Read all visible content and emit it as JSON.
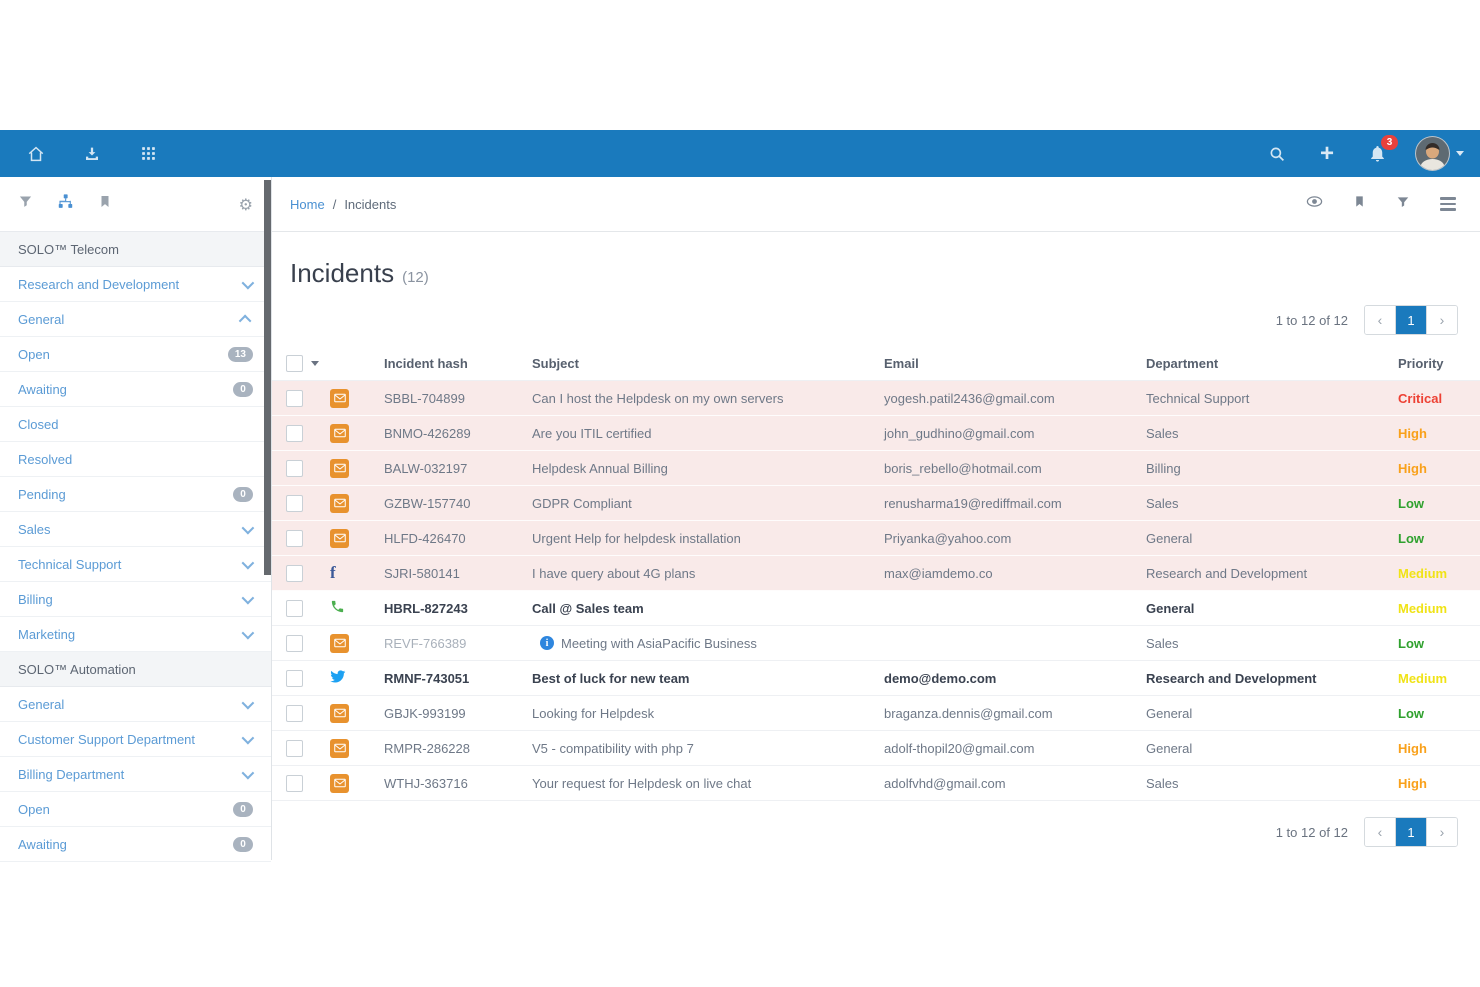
{
  "topbar": {
    "notification_count": "3",
    "icons": [
      "home-icon",
      "download-icon",
      "apps-grid-icon",
      "search-icon",
      "plus-icon",
      "bell-icon",
      "avatar",
      "caret-down-icon"
    ]
  },
  "sidebar": {
    "header_icons": [
      "filter-icon",
      "sitemap-icon",
      "bookmark-icon",
      "gear-icon"
    ],
    "items": [
      {
        "type": "section",
        "label": "SOLO™ Telecom"
      },
      {
        "type": "item",
        "label": "Research and Development",
        "chevron": "down"
      },
      {
        "type": "item",
        "label": "General",
        "chevron": "up"
      },
      {
        "type": "item",
        "label": "Open",
        "badge": "13"
      },
      {
        "type": "item",
        "label": "Awaiting",
        "badge": "0"
      },
      {
        "type": "item",
        "label": "Closed"
      },
      {
        "type": "item",
        "label": "Resolved"
      },
      {
        "type": "item",
        "label": "Pending",
        "badge": "0"
      },
      {
        "type": "item",
        "label": "Sales",
        "chevron": "down"
      },
      {
        "type": "item",
        "label": "Technical Support",
        "chevron": "down"
      },
      {
        "type": "item",
        "label": "Billing",
        "chevron": "down"
      },
      {
        "type": "item",
        "label": "Marketing",
        "chevron": "down"
      },
      {
        "type": "section",
        "label": "SOLO™ Automation"
      },
      {
        "type": "item",
        "label": "General",
        "chevron": "down"
      },
      {
        "type": "item",
        "label": "Customer Support Department",
        "chevron": "down"
      },
      {
        "type": "item",
        "label": "Billing Department",
        "chevron": "down"
      },
      {
        "type": "item",
        "label": "Open",
        "badge": "0"
      },
      {
        "type": "item",
        "label": "Awaiting",
        "badge": "0"
      }
    ]
  },
  "breadcrumb": {
    "home": "Home",
    "separator": "/",
    "current": "Incidents"
  },
  "header_actions": [
    "eye-icon",
    "bookmark-icon",
    "filter-icon",
    "menu-icon"
  ],
  "page": {
    "title": "Incidents",
    "count": "(12)"
  },
  "pagination": {
    "summary": "1 to 12 of 12",
    "prev": "‹",
    "page": "1",
    "next": "›"
  },
  "table": {
    "columns": [
      "Incident hash",
      "Subject",
      "Email",
      "Department",
      "Priority"
    ],
    "rows": [
      {
        "channel": "email-icon",
        "hash": "SBBL-704899",
        "subject": "Can I host the Helpdesk on my own servers",
        "email": "yogesh.patil2436@gmail.com",
        "department": "Technical Support",
        "priority": "Critical",
        "unread": true,
        "bold": false,
        "muted": false,
        "info": false
      },
      {
        "channel": "email-icon",
        "hash": "BNMO-426289",
        "subject": "Are you ITIL certified",
        "email": "john_gudhino@gmail.com",
        "department": "Sales",
        "priority": "High",
        "unread": true,
        "bold": false,
        "muted": false,
        "info": false
      },
      {
        "channel": "email-icon",
        "hash": "BALW-032197",
        "subject": "Helpdesk Annual Billing",
        "email": "boris_rebello@hotmail.com",
        "department": "Billing",
        "priority": "High",
        "unread": true,
        "bold": false,
        "muted": false,
        "info": false
      },
      {
        "channel": "email-icon",
        "hash": "GZBW-157740",
        "subject": "GDPR Compliant",
        "email": "renusharma19@rediffmail.com",
        "department": "Sales",
        "priority": "Low",
        "unread": true,
        "bold": false,
        "muted": false,
        "info": false
      },
      {
        "channel": "email-icon",
        "hash": "HLFD-426470",
        "subject": "Urgent Help for helpdesk installation",
        "email": "Priyanka@yahoo.com",
        "department": "General",
        "priority": "Low",
        "unread": true,
        "bold": false,
        "muted": false,
        "info": false
      },
      {
        "channel": "facebook-icon",
        "hash": "SJRI-580141",
        "subject": "I have query about 4G plans",
        "email": "max@iamdemo.co",
        "department": "Research and Development",
        "priority": "Medium",
        "unread": true,
        "bold": false,
        "muted": false,
        "info": false
      },
      {
        "channel": "phone-icon",
        "hash": "HBRL-827243",
        "subject": "Call @ Sales team",
        "email": "",
        "department": "General",
        "priority": "Medium",
        "unread": false,
        "bold": true,
        "muted": false,
        "info": false
      },
      {
        "channel": "email-icon",
        "hash": "REVF-766389",
        "subject": "Meeting with AsiaPacific Business",
        "email": "",
        "department": "Sales",
        "priority": "Low",
        "unread": false,
        "bold": false,
        "muted": true,
        "info": true
      },
      {
        "channel": "twitter-icon",
        "hash": "RMNF-743051",
        "subject": "Best of luck for new team",
        "email": "demo@demo.com",
        "department": "Research and Development",
        "priority": "Medium",
        "unread": false,
        "bold": true,
        "muted": false,
        "info": false
      },
      {
        "channel": "email-icon",
        "hash": "GBJK-993199",
        "subject": "Looking for Helpdesk",
        "email": "braganza.dennis@gmail.com",
        "department": "General",
        "priority": "Low",
        "unread": false,
        "bold": false,
        "muted": false,
        "info": false
      },
      {
        "channel": "email-icon",
        "hash": "RMPR-286228",
        "subject": "V5 - compatibility with php 7",
        "email": "adolf-thopil20@gmail.com",
        "department": "General",
        "priority": "High",
        "unread": false,
        "bold": false,
        "muted": false,
        "info": false
      },
      {
        "channel": "email-icon",
        "hash": "WTHJ-363716",
        "subject": "Your request for Helpdesk on live chat",
        "email": "adolfvhd@gmail.com",
        "department": "Sales",
        "priority": "High",
        "unread": false,
        "bold": false,
        "muted": false,
        "info": false
      }
    ]
  },
  "priority_colors": {
    "Critical": "#ed4134",
    "High": "#f9a11b",
    "Medium": "#f0e317",
    "Low": "#2fa12e"
  },
  "colors": {
    "topbar": "#1a7abd",
    "unread_row_bg": "#f9eae9",
    "accent_blue": "#1a7abd"
  }
}
